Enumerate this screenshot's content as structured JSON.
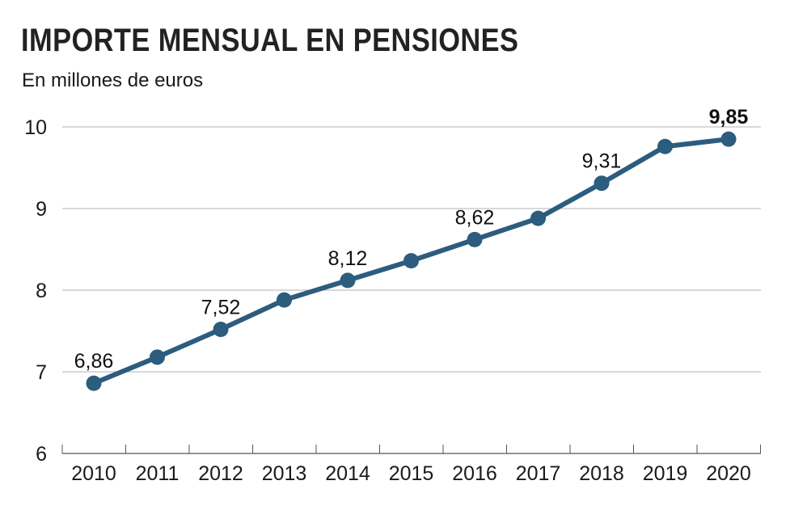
{
  "chart_data": {
    "type": "line",
    "title": "IMPORTE MENSUAL EN PENSIONES",
    "subtitle": "En millones de euros",
    "x": [
      "2010",
      "2011",
      "2012",
      "2013",
      "2014",
      "2015",
      "2016",
      "2017",
      "2018",
      "2019",
      "2020"
    ],
    "series": [
      {
        "name": "Importe mensual",
        "values": [
          6.86,
          7.18,
          7.52,
          7.88,
          8.12,
          8.36,
          8.62,
          8.88,
          9.31,
          9.76,
          9.85
        ],
        "color": "#2c5c7e"
      }
    ],
    "data_labels": [
      {
        "index": 0,
        "text": "6,86",
        "bold": false
      },
      {
        "index": 2,
        "text": "7,52",
        "bold": false
      },
      {
        "index": 4,
        "text": "8,12",
        "bold": false
      },
      {
        "index": 6,
        "text": "8,62",
        "bold": false
      },
      {
        "index": 8,
        "text": "9,31",
        "bold": false
      },
      {
        "index": 10,
        "text": "9,85",
        "bold": true
      }
    ],
    "y_ticks": [
      6,
      7,
      8,
      9,
      10
    ],
    "ylim": [
      6,
      10
    ],
    "xlabel": "",
    "ylabel": "",
    "grid": true,
    "legend": "none"
  }
}
